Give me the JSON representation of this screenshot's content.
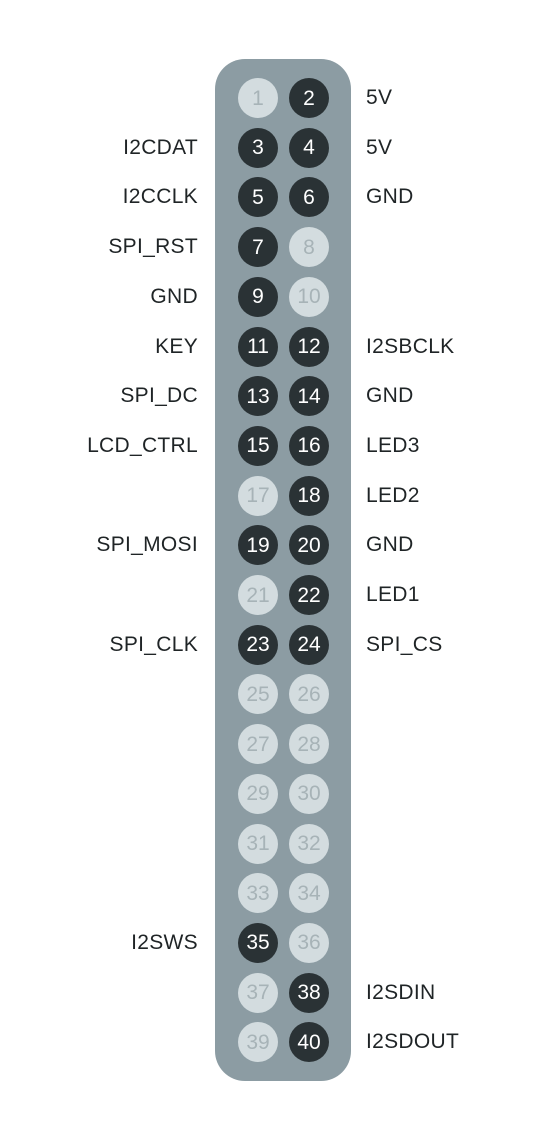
{
  "header": {
    "pins": [
      {
        "number": "1",
        "used": false
      },
      {
        "number": "2",
        "used": true,
        "label": "5V"
      },
      {
        "number": "3",
        "used": true,
        "label": "I2CDAT"
      },
      {
        "number": "4",
        "used": true,
        "label": "5V"
      },
      {
        "number": "5",
        "used": true,
        "label": "I2CCLK"
      },
      {
        "number": "6",
        "used": true,
        "label": "GND"
      },
      {
        "number": "7",
        "used": true,
        "label": "SPI_RST"
      },
      {
        "number": "8",
        "used": false
      },
      {
        "number": "9",
        "used": true,
        "label": "GND"
      },
      {
        "number": "10",
        "used": false
      },
      {
        "number": "11",
        "used": true,
        "label": "KEY"
      },
      {
        "number": "12",
        "used": true,
        "label": "I2SBCLK"
      },
      {
        "number": "13",
        "used": true,
        "label": "SPI_DC"
      },
      {
        "number": "14",
        "used": true,
        "label": "GND"
      },
      {
        "number": "15",
        "used": true,
        "label": "LCD_CTRL"
      },
      {
        "number": "16",
        "used": true,
        "label": "LED3"
      },
      {
        "number": "17",
        "used": false
      },
      {
        "number": "18",
        "used": true,
        "label": "LED2"
      },
      {
        "number": "19",
        "used": true,
        "label": "SPI_MOSI"
      },
      {
        "number": "20",
        "used": true,
        "label": "GND"
      },
      {
        "number": "21",
        "used": false
      },
      {
        "number": "22",
        "used": true,
        "label": "LED1"
      },
      {
        "number": "23",
        "used": true,
        "label": "SPI_CLK"
      },
      {
        "number": "24",
        "used": true,
        "label": "SPI_CS"
      },
      {
        "number": "25",
        "used": false
      },
      {
        "number": "26",
        "used": false
      },
      {
        "number": "27",
        "used": false
      },
      {
        "number": "28",
        "used": false
      },
      {
        "number": "29",
        "used": false
      },
      {
        "number": "30",
        "used": false
      },
      {
        "number": "31",
        "used": false
      },
      {
        "number": "32",
        "used": false
      },
      {
        "number": "33",
        "used": false
      },
      {
        "number": "34",
        "used": false
      },
      {
        "number": "35",
        "used": true,
        "label": "I2SWS"
      },
      {
        "number": "36",
        "used": false
      },
      {
        "number": "37",
        "used": false
      },
      {
        "number": "38",
        "used": true,
        "label": "I2SDIN"
      },
      {
        "number": "39",
        "used": false
      },
      {
        "number": "40",
        "used": true,
        "label": "I2SDOUT"
      }
    ]
  },
  "colors": {
    "board": "#8c9ca3",
    "pin_used": "#2a3235",
    "pin_unused": "#d3dcdf",
    "pin_used_text": "#ffffff",
    "pin_unused_text": "#a7b3b7",
    "label_text": "#1f2426"
  }
}
